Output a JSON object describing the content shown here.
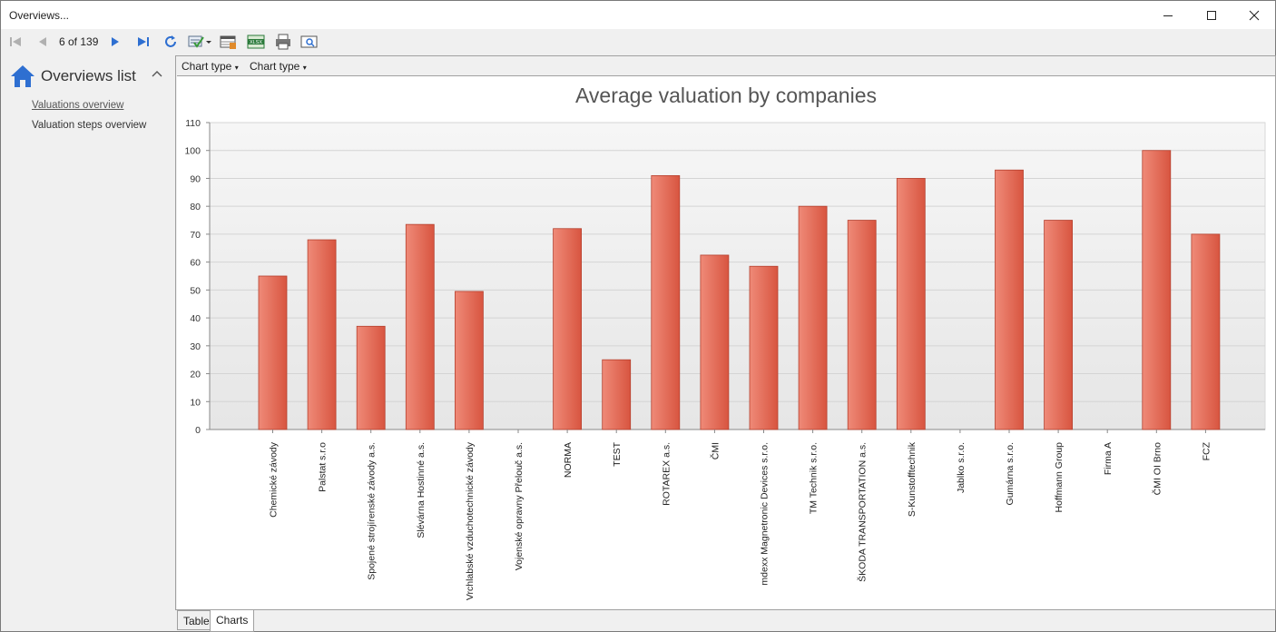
{
  "window": {
    "title": "Overviews..."
  },
  "toolbar": {
    "pager": "6 of 139"
  },
  "sidebar": {
    "header": "Overviews list",
    "items": [
      {
        "label": "Valuations overview",
        "active": true
      },
      {
        "label": "Valuation steps overview",
        "active": false
      }
    ]
  },
  "subbar": {
    "dropdown1": "Chart type",
    "dropdown2": "Chart type"
  },
  "tabs": {
    "table": "Table",
    "charts": "Charts"
  },
  "colors": {
    "bar": "#e8705c",
    "bar_border": "#b5402e",
    "plot_bg": "#efefef",
    "accent": "#2e6fd1"
  },
  "chart_data": {
    "type": "bar",
    "title": "Average valuation by companies",
    "xlabel": "",
    "ylabel": "",
    "ylim": [
      0,
      110
    ],
    "yticks": [
      0,
      10,
      20,
      30,
      40,
      50,
      60,
      70,
      80,
      90,
      100,
      110
    ],
    "grid": true,
    "categories": [
      "Chemické závody",
      "Palstat s.r.o",
      "Spojené strojírenské závody a.s.",
      "Slévárna Hostinné a.s.",
      "Vrchlabské vzduchotechnické závody",
      "Vojenské opravny Přelouč a.s.",
      "NORMA",
      "TEST",
      "ROTAREX a.s.",
      "ČMI",
      "mdexx Magnetronic Devices s.r.o.",
      "TM Technik s.r.o.",
      "ŠKODA TRANSPORTATION a.s.",
      "S-Kunstofftechnik",
      "Jablko s.r.o.",
      "Gumárna s.r.o.",
      "Hoffmann Group",
      "Firma A",
      "ČMI OI Brno",
      "FCZ"
    ],
    "values": [
      55,
      68,
      37,
      73.5,
      49.5,
      0,
      72,
      25,
      91,
      62.5,
      58.5,
      80,
      75,
      90,
      0,
      93,
      75,
      0,
      100,
      70
    ]
  }
}
